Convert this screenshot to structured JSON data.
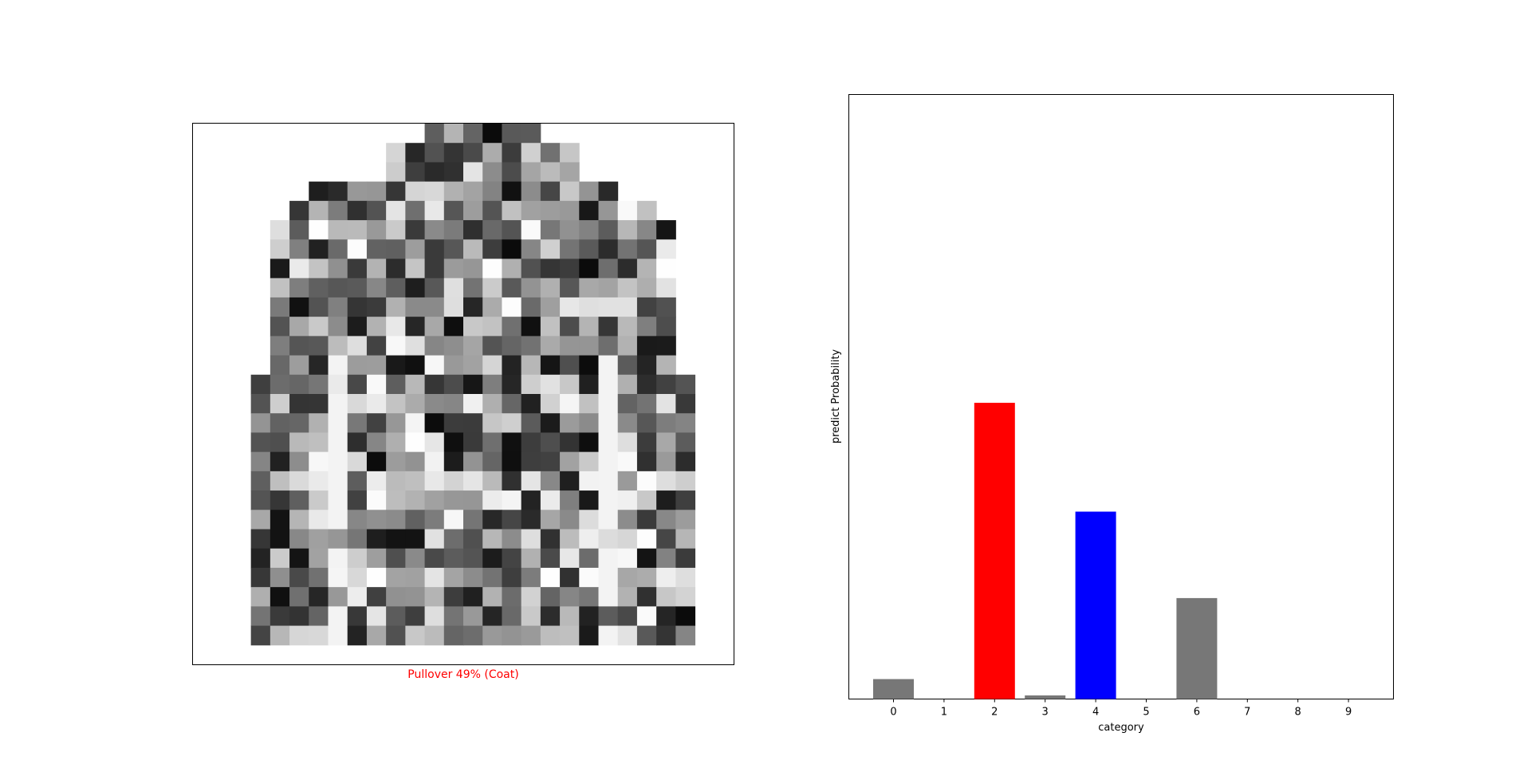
{
  "image_panel": {
    "caption": "Pullover 49% (Coat)",
    "caption_color": "#ff0000",
    "colormap": "binary",
    "grid_size": 28
  },
  "chart_data": {
    "type": "bar",
    "categories": [
      "0",
      "1",
      "2",
      "3",
      "4",
      "5",
      "6",
      "7",
      "8",
      "9"
    ],
    "values": [
      0.033,
      0.0,
      0.49,
      0.006,
      0.31,
      0.0,
      0.167,
      0.0,
      0.0,
      0.0
    ],
    "colors": [
      "#777777",
      "#777777",
      "#ff0000",
      "#777777",
      "#0000ff",
      "#777777",
      "#777777",
      "#777777",
      "#777777",
      "#777777"
    ],
    "title": "",
    "xlabel": "category",
    "ylabel": "predict Probability",
    "ylim": [
      0,
      1
    ],
    "yticks_visible": false,
    "grid": false,
    "predicted_index": 2,
    "true_index": 4
  }
}
